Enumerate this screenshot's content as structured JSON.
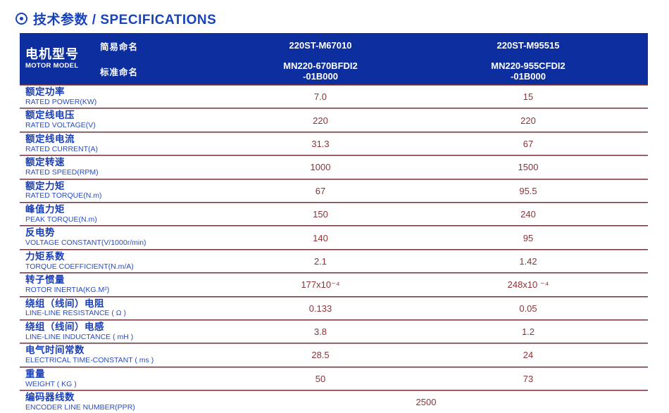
{
  "page": {
    "title": "技术参数 / SPECIFICATIONS"
  },
  "colors": {
    "header_bg": "#0c2e9e",
    "accent_blue": "#1843bb",
    "label_blue": "#1a3eb4",
    "value_red": "#8a3338"
  },
  "table": {
    "motor_model_zh": "电机型号",
    "motor_model_en": "MOTOR MODEL",
    "simple_name_label": "简易命名",
    "standard_name_label": "标准命名",
    "columns": [
      {
        "simple_name": "220ST-M67010",
        "standard_name": "MN220-670BFDI2\n-01B000"
      },
      {
        "simple_name": "220ST-M95515",
        "standard_name": "MN220-955CFDI2\n-01B000"
      }
    ],
    "rows": [
      {
        "zh": "额定功率",
        "en": "RATED POWER(KW)",
        "v1": "7.0",
        "v2": "15"
      },
      {
        "zh": "额定线电压",
        "en": "RATED VOLTAGE(V)",
        "v1": "220",
        "v2": "220"
      },
      {
        "zh": "额定线电流",
        "en": "RATED CURRENT(A)",
        "v1": "31.3",
        "v2": "67"
      },
      {
        "zh": "额定转速",
        "en": "RATED SPEED(RPM)",
        "v1": "1000",
        "v2": "1500"
      },
      {
        "zh": "额定力矩",
        "en": "RATED TORQUE(N.m)",
        "v1": "67",
        "v2": "95.5"
      },
      {
        "zh": "峰值力矩",
        "en": "PEAK TORQUE(N.m)",
        "v1": "150",
        "v2": "240"
      },
      {
        "zh": "反电势",
        "en": "VOLTAGE CONSTANT(V/1000r/min)",
        "v1": "140",
        "v2": "95"
      },
      {
        "zh": "力矩系数",
        "en": "TORQUE COEFFICIENT(N.m/A)",
        "v1": "2.1",
        "v2": "1.42"
      },
      {
        "zh": "转子惯量",
        "en": "ROTOR INERTIA(KG.M²)",
        "v1": "177x10⁻⁴",
        "v2": "248x10 ⁻⁴"
      },
      {
        "zh": "绕组（线间）电阻",
        "en": "LINE-LINE RESISTANCE ( Ω )",
        "v1": "0.133",
        "v2": "0.05"
      },
      {
        "zh": "绕组（线间）电感",
        "en": "LINE-LINE INDUCTANCE ( mH )",
        "v1": "3.8",
        "v2": "1.2"
      },
      {
        "zh": "电气时间常数",
        "en": "ELECTRICAL TIME-CONSTANT ( ms )",
        "v1": "28.5",
        "v2": "24"
      },
      {
        "zh": "重量",
        "en": "WEIGHT ( KG )",
        "v1": "50",
        "v2": "73"
      },
      {
        "zh": "编码器线数",
        "en": "ENCODER LINE NUMBER(PPR)",
        "span_value": "2500"
      }
    ]
  }
}
